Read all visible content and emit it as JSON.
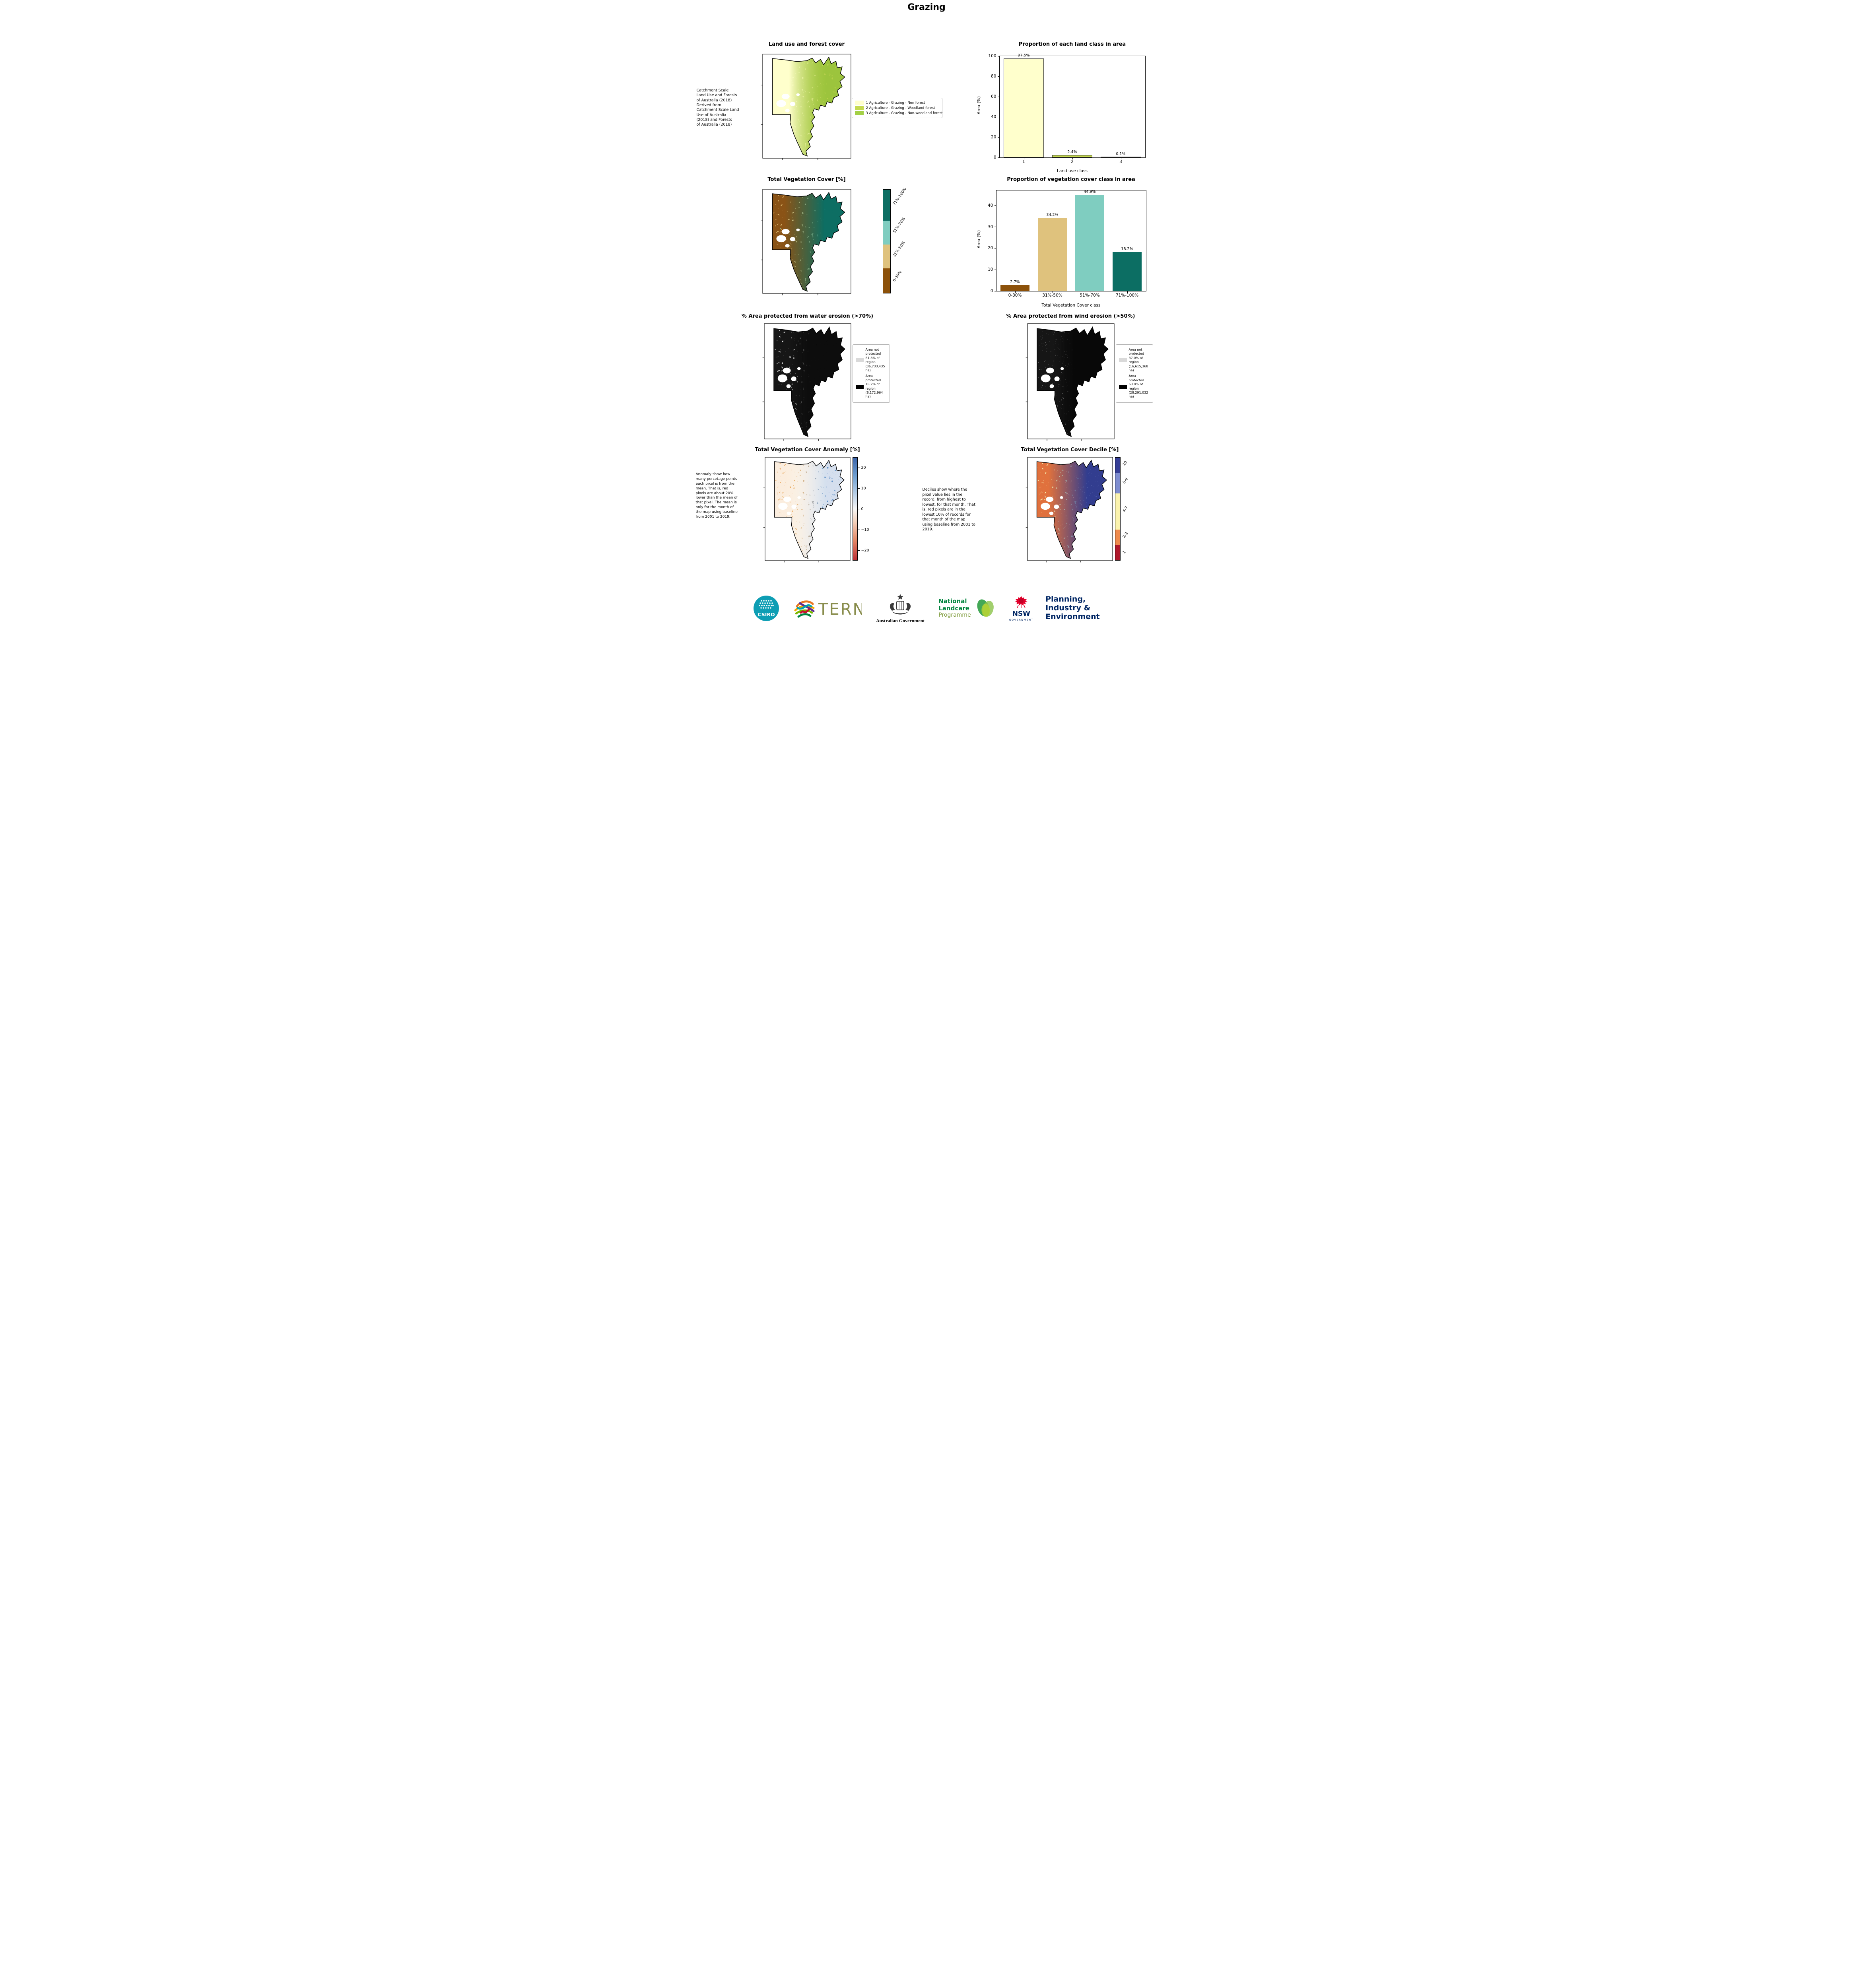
{
  "title": "Grazing",
  "land_use": {
    "title": "Land use and forest cover",
    "side_note": " Catchment Scale\nLand Use and Forests\nof Australia (2018)\nDerived from\nCatchment Scale Land\nUse of Australia\n(2018) and Forests\nof Australia (2018)",
    "legend": [
      {
        "label": "1 Agriculture - Grazing - Non forest",
        "color": "#ffffcc"
      },
      {
        "label": "2 Agriculture - Grazing - Woodland forest",
        "color": "#c5d94f"
      },
      {
        "label": "3 Agriculture - Grazing - Non-woodland forest",
        "color": "#a3d045"
      }
    ]
  },
  "veg_cover": {
    "title": "Total Vegetation Cover [%]",
    "colorbar": [
      {
        "label": "71%-100%",
        "color": "#0c6e63"
      },
      {
        "label": "51%-70%",
        "color": "#7fcdc0"
      },
      {
        "label": "31%-50%",
        "color": "#dfc27d"
      },
      {
        "label": "0-30%",
        "color": "#8c510a"
      }
    ]
  },
  "water_erosion": {
    "title": "% Area protected from water erosion (>70%)",
    "legend": [
      {
        "label": "Area not protected 81.8% of region (36,733,435 ha)",
        "color": "#d9d9d9"
      },
      {
        "label": "Area protected 18.2% of region (8,172,964 ha)",
        "color": "#000000"
      }
    ]
  },
  "wind_erosion": {
    "title": "% Area protected from wind erosion (>50%)",
    "legend": [
      {
        "label": "Area not protected 37.0% of region (16,615,368 ha)",
        "color": "#d9d9d9"
      },
      {
        "label": "Area protected 63.0% of region (28,291,032 ha)",
        "color": "#000000"
      }
    ]
  },
  "anomaly": {
    "title": "Total Vegetation Cover Anomaly [%]",
    "side_note": "Anomaly show how many percetage points each pixel is from the mean. That is, red pixels are about 20% lower than the mean of that pixel. The mean is only for the month of the map using baseline from 2001 to 2019.",
    "colorbar_ticks": [
      "20",
      "10",
      "0",
      "−10",
      "−20"
    ]
  },
  "decile": {
    "title": "Total Vegetation Cover Decile [%]",
    "side_note": "Deciles show where the pixel value lies in the record, from highest to lowest, for that month. That is, red pixels are in the lowest 10% of records for that month of the map using baseline from 2001 to 2019.",
    "colorbar": [
      {
        "label": "10",
        "color": "#353e96"
      },
      {
        "label": "8-9",
        "color": "#7e8dd0"
      },
      {
        "label": "4-7",
        "color": "#fbf3ae"
      },
      {
        "label": "2-3",
        "color": "#ef8a4c"
      },
      {
        "label": "1",
        "color": "#b0172b"
      }
    ]
  },
  "chart_data": [
    {
      "type": "bar",
      "title": "Proportion of each land class in area",
      "xlabel": "Land use class",
      "ylabel": "Area (%)",
      "categories": [
        "1",
        "2",
        "3"
      ],
      "values": [
        97.5,
        2.4,
        0.1
      ],
      "value_labels": [
        "97.5%",
        "2.4%",
        "0.1%"
      ],
      "colors": [
        "#ffffcc",
        "#c5d94f",
        "#a3d045"
      ],
      "edgecolor": "#444444",
      "ylim": [
        0,
        100
      ],
      "yticks": [
        0,
        20,
        40,
        60,
        80,
        100
      ],
      "bar_width_ratio": 0.82,
      "legend_position": "none",
      "grid": false
    },
    {
      "type": "bar",
      "title": "Proportion of vegetation cover class in area",
      "xlabel": "Total Vegetation Cover class",
      "ylabel": "Area (%)",
      "categories": [
        "0-30%",
        "31%-50%",
        "51%-70%",
        "71%-100%"
      ],
      "values": [
        2.7,
        34.2,
        44.9,
        18.2
      ],
      "value_labels": [
        "2.7%",
        "34.2%",
        "44.9%",
        "18.2%"
      ],
      "colors": [
        "#8c510a",
        "#dfc27d",
        "#7fcdc0",
        "#0c6e63"
      ],
      "edgecolor": null,
      "ylim": [
        0,
        47
      ],
      "yticks": [
        0,
        10,
        20,
        30,
        40
      ],
      "bar_width_ratio": 0.78,
      "legend_position": "none",
      "grid": false
    }
  ],
  "footer": {
    "csiro": "CSIRO",
    "tern": "TERN",
    "aus_gov": "Australian Government",
    "landcare_1": "National",
    "landcare_2": "Landcare",
    "landcare_3": "Programme",
    "nsw": "NSW",
    "nsw_gov": "GOVERNMENT",
    "dept_1": "Planning,",
    "dept_2": "Industry &",
    "dept_3": "Environment"
  }
}
